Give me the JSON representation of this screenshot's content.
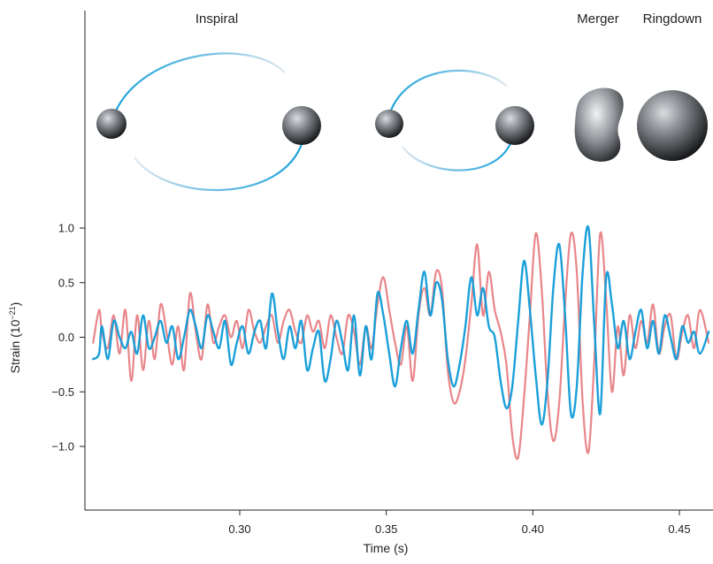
{
  "colors": {
    "series_a": "#e8868a",
    "series_b": "#0f9bd7",
    "orbit": "#1aa3dc",
    "orbit_fade": "#c9dbe6",
    "axis": "#222222"
  },
  "phases": {
    "inspiral": "Inspiral",
    "merger": "Merger",
    "ringdown": "Ringdown"
  },
  "chart_data": {
    "type": "line",
    "xlabel": "Time (s)",
    "ylabel_main": "Strain (10",
    "ylabel_exp": "−21",
    "ylabel_close": ")",
    "xlim": [
      0.25,
      0.46
    ],
    "ylim": [
      -1.55,
      1.15
    ],
    "xticks": [
      0.3,
      0.35,
      0.4,
      0.45
    ],
    "xtick_labels": [
      "0.30",
      "0.35",
      "0.40",
      "0.45"
    ],
    "yticks": [
      1.0,
      0.5,
      0.0,
      -0.5,
      -1.0
    ],
    "ytick_labels": [
      "1.0",
      "0.5",
      "0.0",
      "−0.5",
      "−1.0"
    ],
    "grid": false,
    "series": [
      {
        "color": "#e8868a",
        "x": [
          0.25,
          0.252,
          0.253,
          0.255,
          0.257,
          0.259,
          0.261,
          0.263,
          0.265,
          0.267,
          0.269,
          0.271,
          0.273,
          0.275,
          0.277,
          0.279,
          0.281,
          0.283,
          0.285,
          0.287,
          0.289,
          0.291,
          0.293,
          0.295,
          0.297,
          0.299,
          0.301,
          0.303,
          0.305,
          0.307,
          0.309,
          0.311,
          0.313,
          0.315,
          0.317,
          0.319,
          0.321,
          0.323,
          0.325,
          0.327,
          0.329,
          0.331,
          0.333,
          0.335,
          0.337,
          0.339,
          0.341,
          0.343,
          0.345,
          0.347,
          0.349,
          0.351,
          0.353,
          0.355,
          0.357,
          0.359,
          0.361,
          0.363,
          0.365,
          0.367,
          0.369,
          0.371,
          0.373,
          0.375,
          0.377,
          0.379,
          0.381,
          0.383,
          0.385,
          0.387,
          0.389,
          0.391,
          0.393,
          0.395,
          0.397,
          0.399,
          0.401,
          0.403,
          0.405,
          0.407,
          0.409,
          0.411,
          0.413,
          0.415,
          0.417,
          0.419,
          0.421,
          0.423,
          0.425,
          0.427,
          0.429,
          0.431,
          0.433,
          0.435,
          0.437,
          0.439,
          0.441,
          0.443,
          0.445,
          0.447,
          0.449,
          0.451,
          0.453,
          0.455,
          0.457,
          0.46
        ],
        "y": [
          -0.05,
          0.25,
          0.05,
          -0.1,
          0.2,
          -0.15,
          0.25,
          -0.4,
          0.2,
          -0.3,
          0.15,
          -0.2,
          0.3,
          0.05,
          -0.25,
          0.1,
          -0.3,
          0.4,
          0.05,
          -0.2,
          0.3,
          -0.05,
          0.1,
          0.2,
          0.0,
          0.15,
          -0.1,
          0.25,
          0.05,
          -0.05,
          0.1,
          0.2,
          -0.05,
          0.15,
          0.25,
          0.05,
          -0.05,
          0.2,
          0.05,
          0.15,
          -0.1,
          0.2,
          0.0,
          -0.15,
          0.2,
          0.05,
          -0.25,
          0.1,
          -0.1,
          0.3,
          0.55,
          0.25,
          -0.05,
          -0.25,
          0.1,
          -0.4,
          0.2,
          0.45,
          0.2,
          0.6,
          0.45,
          -0.3,
          -0.6,
          -0.5,
          -0.2,
          0.3,
          0.85,
          0.2,
          0.6,
          0.25,
          0.05,
          -0.25,
          -0.9,
          -1.1,
          -0.55,
          0.2,
          0.95,
          0.45,
          -0.5,
          -0.95,
          -0.6,
          0.3,
          0.95,
          0.6,
          -0.6,
          -1.05,
          -0.2,
          0.95,
          0.35,
          -0.5,
          0.1,
          -0.35,
          0.2,
          -0.1,
          0.15,
          -0.05,
          0.3,
          -0.15,
          0.1,
          0.2,
          -0.2,
          0.05,
          0.2,
          -0.1,
          0.25,
          -0.05
        ]
      },
      {
        "color": "#0f9bd7",
        "x": [
          0.25,
          0.252,
          0.253,
          0.255,
          0.257,
          0.259,
          0.261,
          0.263,
          0.265,
          0.267,
          0.269,
          0.271,
          0.273,
          0.275,
          0.277,
          0.279,
          0.281,
          0.283,
          0.285,
          0.287,
          0.289,
          0.291,
          0.293,
          0.295,
          0.297,
          0.299,
          0.301,
          0.303,
          0.305,
          0.307,
          0.309,
          0.311,
          0.313,
          0.315,
          0.317,
          0.319,
          0.321,
          0.323,
          0.325,
          0.327,
          0.329,
          0.331,
          0.333,
          0.335,
          0.337,
          0.339,
          0.341,
          0.343,
          0.345,
          0.347,
          0.349,
          0.351,
          0.353,
          0.355,
          0.357,
          0.359,
          0.361,
          0.363,
          0.365,
          0.367,
          0.369,
          0.371,
          0.373,
          0.375,
          0.377,
          0.379,
          0.381,
          0.383,
          0.385,
          0.387,
          0.389,
          0.391,
          0.393,
          0.395,
          0.397,
          0.399,
          0.401,
          0.403,
          0.405,
          0.407,
          0.409,
          0.411,
          0.413,
          0.415,
          0.417,
          0.419,
          0.421,
          0.423,
          0.425,
          0.427,
          0.429,
          0.431,
          0.433,
          0.435,
          0.437,
          0.439,
          0.441,
          0.443,
          0.445,
          0.447,
          0.449,
          0.451,
          0.453,
          0.455,
          0.457,
          0.46
        ],
        "y": [
          -0.2,
          -0.15,
          0.1,
          -0.2,
          0.15,
          0.0,
          -0.1,
          0.05,
          -0.15,
          0.2,
          -0.1,
          0.0,
          0.15,
          -0.05,
          0.1,
          -0.2,
          0.0,
          0.25,
          0.1,
          -0.1,
          0.2,
          0.05,
          -0.1,
          0.15,
          -0.25,
          -0.05,
          0.1,
          -0.15,
          0.05,
          0.15,
          -0.1,
          0.4,
          0.05,
          -0.2,
          0.1,
          -0.1,
          0.15,
          -0.3,
          -0.1,
          0.05,
          -0.4,
          -0.2,
          0.15,
          -0.05,
          -0.3,
          0.2,
          -0.35,
          0.1,
          -0.2,
          0.4,
          0.2,
          -0.15,
          -0.45,
          -0.1,
          0.15,
          -0.15,
          0.25,
          0.6,
          0.2,
          0.5,
          0.35,
          -0.2,
          -0.45,
          -0.25,
          0.1,
          0.55,
          0.2,
          0.45,
          0.1,
          0.0,
          -0.4,
          -0.65,
          -0.45,
          0.15,
          0.7,
          0.25,
          -0.35,
          -0.8,
          -0.4,
          0.45,
          0.85,
          0.2,
          -0.7,
          -0.45,
          0.6,
          1.0,
          0.1,
          -0.7,
          0.55,
          0.3,
          -0.1,
          0.15,
          -0.2,
          0.05,
          0.25,
          -0.1,
          0.15,
          -0.15,
          0.2,
          0.0,
          -0.2,
          0.1,
          -0.05,
          0.05,
          -0.15,
          0.05
        ]
      }
    ]
  }
}
